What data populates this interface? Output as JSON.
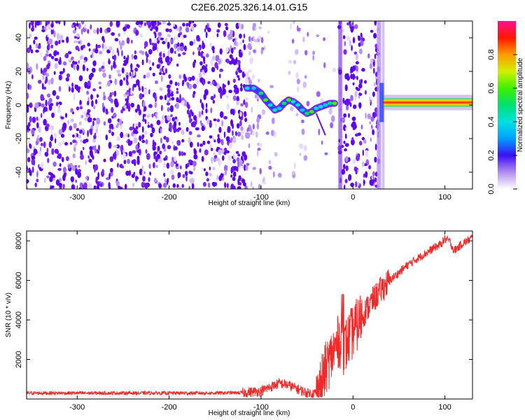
{
  "title": "C2E6.2025.326.14.01.G15",
  "colors": {
    "snr_line": "#ee2a2a",
    "scatter_dark": "#6a0ff0",
    "scatter_light": "#d6c2f7"
  },
  "chart_data": [
    {
      "type": "heatmap",
      "name": "spectrogram",
      "xlabel": "Height of straight line (km)",
      "ylabel": "Frequency (Hz)",
      "xlim": [
        -355,
        130
      ],
      "ylim": [
        -50,
        50
      ],
      "xticks": [
        -300,
        -200,
        -100,
        0,
        100
      ],
      "yticks": [
        -40,
        -20,
        0,
        20,
        40
      ],
      "xtick_labels": [
        "-300",
        "-200",
        "-100",
        "0",
        "100"
      ],
      "ytick_labels": [
        "-40",
        "-20",
        "0",
        "20",
        "40"
      ],
      "signal_trace": [
        {
          "x": -115,
          "y": 10
        },
        {
          "x": -108,
          "y": 10
        },
        {
          "x": -100,
          "y": 7
        },
        {
          "x": -95,
          "y": 3
        },
        {
          "x": -90,
          "y": 0
        },
        {
          "x": -85,
          "y": -3
        },
        {
          "x": -80,
          "y": -2
        },
        {
          "x": -75,
          "y": 1
        },
        {
          "x": -70,
          "y": 3
        },
        {
          "x": -65,
          "y": 2
        },
        {
          "x": -60,
          "y": 0
        },
        {
          "x": -55,
          "y": -3
        },
        {
          "x": -50,
          "y": -5
        },
        {
          "x": -45,
          "y": -4
        },
        {
          "x": -40,
          "y": -2
        },
        {
          "x": -35,
          "y": -1
        },
        {
          "x": -30,
          "y": 0
        },
        {
          "x": -25,
          "y": 1
        },
        {
          "x": -20,
          "y": 1
        }
      ],
      "stable_tone": {
        "x_start": 32,
        "x_end": 130,
        "frequency": 1.5,
        "amplitude": 0.95
      },
      "colorbar": {
        "label": "Normalized spectral amplitude",
        "range": [
          0,
          1
        ],
        "ticks": [
          0.0,
          0.2,
          0.4,
          0.6,
          0.8
        ],
        "tick_labels": [
          "0.0",
          "0.2",
          "0.4",
          "0.6",
          "0.8"
        ]
      }
    },
    {
      "type": "line",
      "name": "snr",
      "xlabel": "Height of straight line (km)",
      "ylabel": "SNR (10 * v/v)",
      "xlim": [
        -355,
        130
      ],
      "ylim": [
        0,
        8500
      ],
      "xticks": [
        -300,
        -200,
        -100,
        0,
        100
      ],
      "yticks": [
        2000,
        4000,
        6000,
        8000
      ],
      "xtick_labels": [
        "-300",
        "-200",
        "-100",
        "0",
        "100"
      ],
      "ytick_labels": [
        "2000",
        "4000",
        "6000",
        "8000"
      ],
      "series": [
        {
          "name": "SNR",
          "x": [
            -355,
            -300,
            -250,
            -200,
            -150,
            -120,
            -100,
            -90,
            -80,
            -70,
            -60,
            -50,
            -40,
            -35,
            -30,
            -25,
            -20,
            -15,
            -10,
            -5,
            0,
            10,
            20,
            30,
            40,
            50,
            60,
            70,
            80,
            90,
            95,
            100,
            105,
            110,
            115,
            120,
            125,
            130
          ],
          "y": [
            300,
            300,
            300,
            300,
            300,
            320,
            400,
            600,
            800,
            700,
            500,
            300,
            300,
            700,
            1500,
            2000,
            2500,
            3000,
            2500,
            3000,
            3400,
            4200,
            4900,
            5500,
            6000,
            6400,
            6800,
            7100,
            7400,
            7700,
            7800,
            8100,
            8000,
            7500,
            7700,
            7900,
            8000,
            8200
          ]
        }
      ]
    }
  ]
}
